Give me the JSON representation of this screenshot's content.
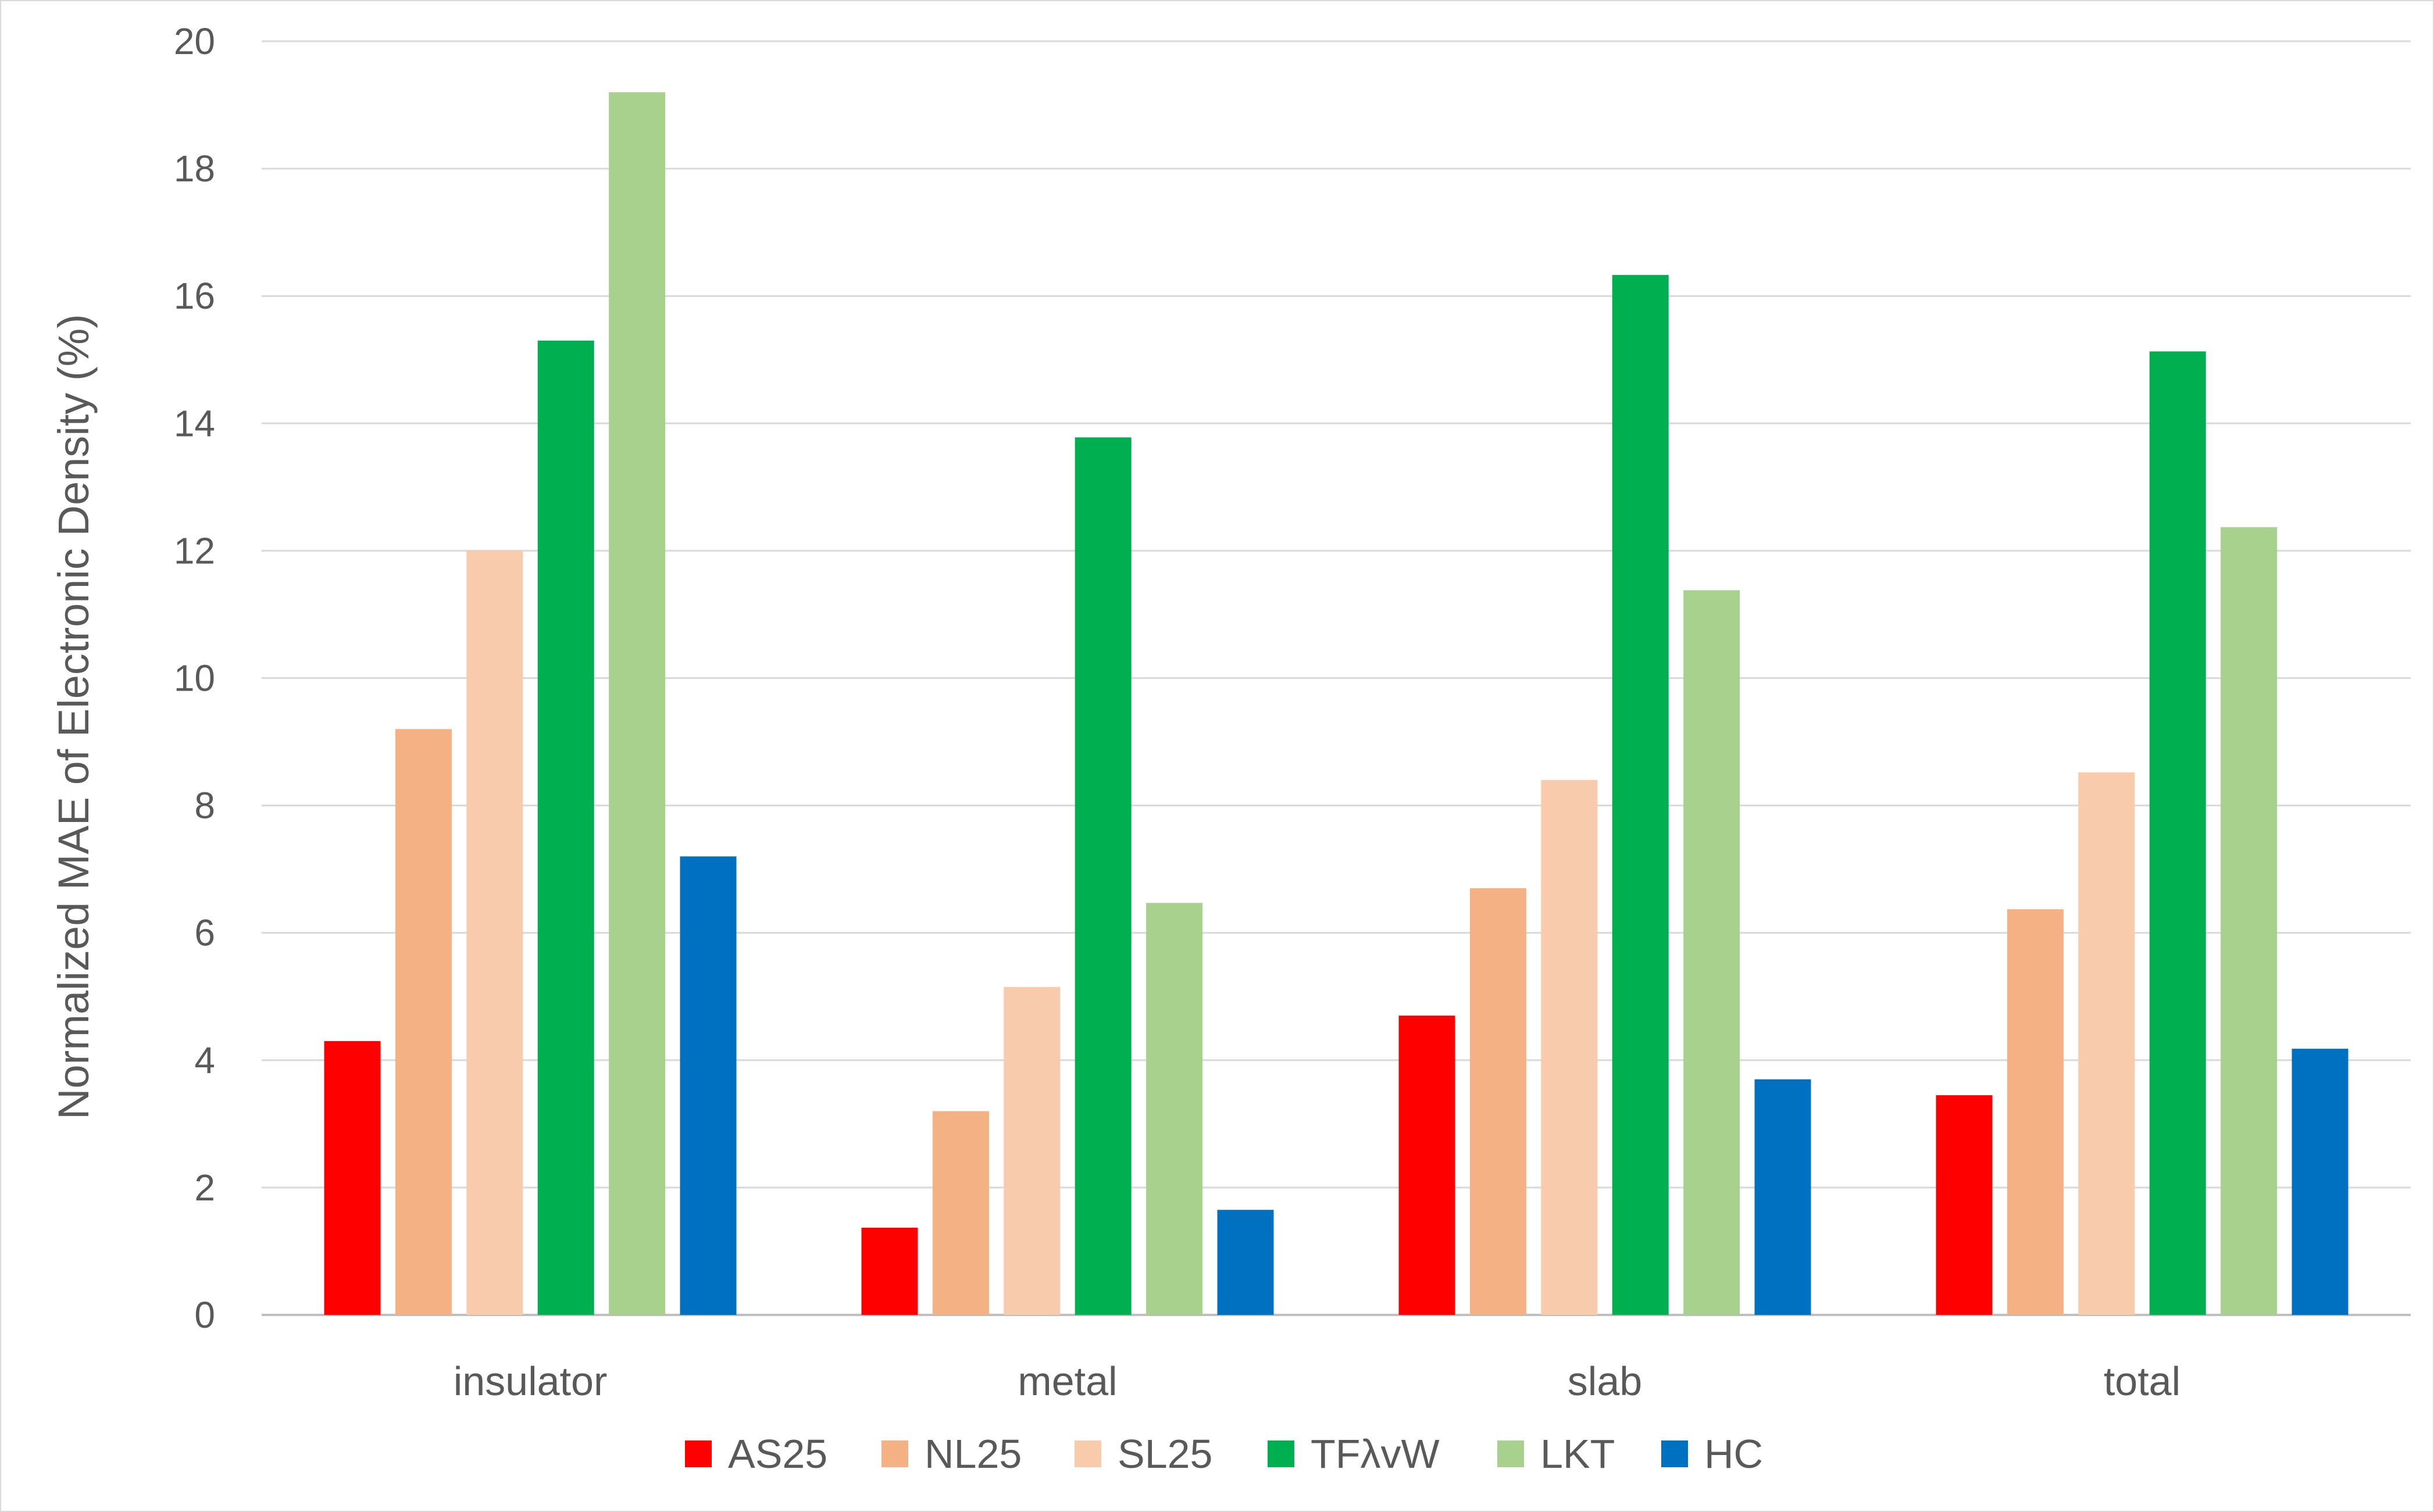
{
  "chart_data": {
    "type": "bar",
    "title": "",
    "xlabel": "",
    "ylabel": "Normalized MAE of Electronic Density (%)",
    "ylim": [
      0,
      20
    ],
    "yticks": [
      "0",
      "2",
      "4",
      "6",
      "8",
      "10",
      "12",
      "14",
      "16",
      "18",
      "20"
    ],
    "grid": true,
    "legend_position": "bottom",
    "categories": [
      "insulator",
      "metal",
      "slab",
      "total"
    ],
    "series": [
      {
        "name": "AS25",
        "color": "#ff0000",
        "values": [
          4.3,
          1.37,
          4.7,
          3.45
        ]
      },
      {
        "name": "NL25",
        "color": "#f4b183",
        "values": [
          9.2,
          3.2,
          6.7,
          6.37
        ]
      },
      {
        "name": "SL25",
        "color": "#f8cbad",
        "values": [
          12.0,
          5.15,
          8.4,
          8.52
        ]
      },
      {
        "name": "TFλvW",
        "color": "#00b050",
        "values": [
          15.3,
          13.78,
          16.33,
          15.13
        ]
      },
      {
        "name": "LKT",
        "color": "#a9d18e",
        "values": [
          19.2,
          6.47,
          11.38,
          12.37
        ]
      },
      {
        "name": "HC",
        "color": "#0070c0",
        "values": [
          7.2,
          1.65,
          3.7,
          4.18
        ]
      }
    ]
  }
}
